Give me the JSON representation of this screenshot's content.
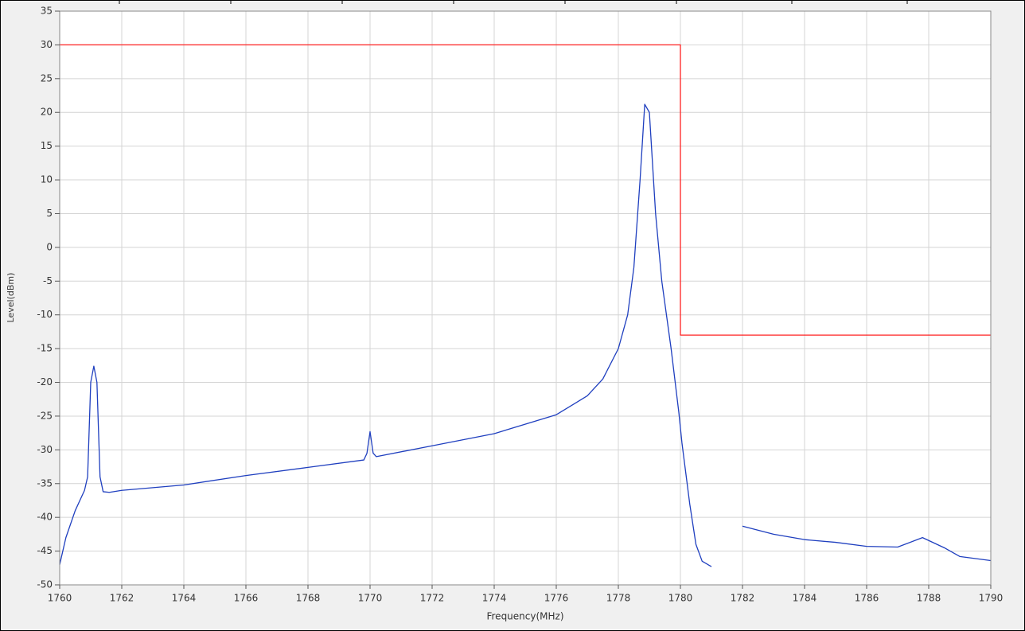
{
  "chart_data": {
    "type": "line",
    "xlabel": "Frequency(MHz)",
    "ylabel": "Level(dBm)",
    "xlim": [
      1760,
      1790
    ],
    "ylim": [
      -50,
      35
    ],
    "xticks": [
      1760,
      1762,
      1764,
      1766,
      1768,
      1770,
      1772,
      1774,
      1776,
      1778,
      1780,
      1782,
      1784,
      1786,
      1788,
      1790
    ],
    "yticks": [
      35,
      30,
      25,
      20,
      15,
      10,
      5,
      0,
      -5,
      -10,
      -15,
      -20,
      -25,
      -30,
      -35,
      -40,
      -45,
      -50
    ],
    "grid": true,
    "series": [
      {
        "color": "#ff2020",
        "x": [
          1760,
          1780,
          1780,
          1790
        ],
        "values": [
          30,
          30,
          -13,
          -13
        ]
      },
      {
        "color": "#1f3fbf",
        "x": [
          1760,
          1760.2,
          1760.5,
          1760.8,
          1760.9,
          1761.0,
          1761.1,
          1761.2,
          1761.3,
          1761.4,
          1761.6,
          1762,
          1764,
          1766,
          1768,
          1769.8,
          1769.9,
          1770,
          1770.1,
          1770.2,
          1772,
          1774,
          1776,
          1777,
          1777.5,
          1778,
          1778.3,
          1778.5,
          1778.7,
          1778.85,
          1779,
          1779.2,
          1779.4,
          1779.7,
          1779.95,
          1780.05,
          1780.3,
          1780.5,
          1780.7,
          1781.0,
          1781.0,
          1782,
          1783,
          1784,
          1785,
          1786,
          1787,
          1787.8,
          1788.5,
          1789,
          1790
        ],
        "values": [
          -47,
          -43,
          -39,
          -36,
          -34,
          -20,
          -17.6,
          -20,
          -34,
          -36.2,
          -36.3,
          -36,
          -35.2,
          -33.8,
          -32.6,
          -31.5,
          -30.5,
          -27.3,
          -30.5,
          -31,
          -29.4,
          -27.6,
          -24.8,
          -22,
          -19.5,
          -15,
          -10,
          -3,
          10,
          21.2,
          20,
          5,
          -5,
          -15,
          -24.5,
          -29,
          -38,
          -44,
          -46.5,
          -47.3,
          null,
          -41.3,
          -42.5,
          -43.3,
          -43.7,
          -44.3,
          -44.4,
          -43,
          -44.5,
          -45.8,
          -46.4
        ]
      }
    ]
  }
}
